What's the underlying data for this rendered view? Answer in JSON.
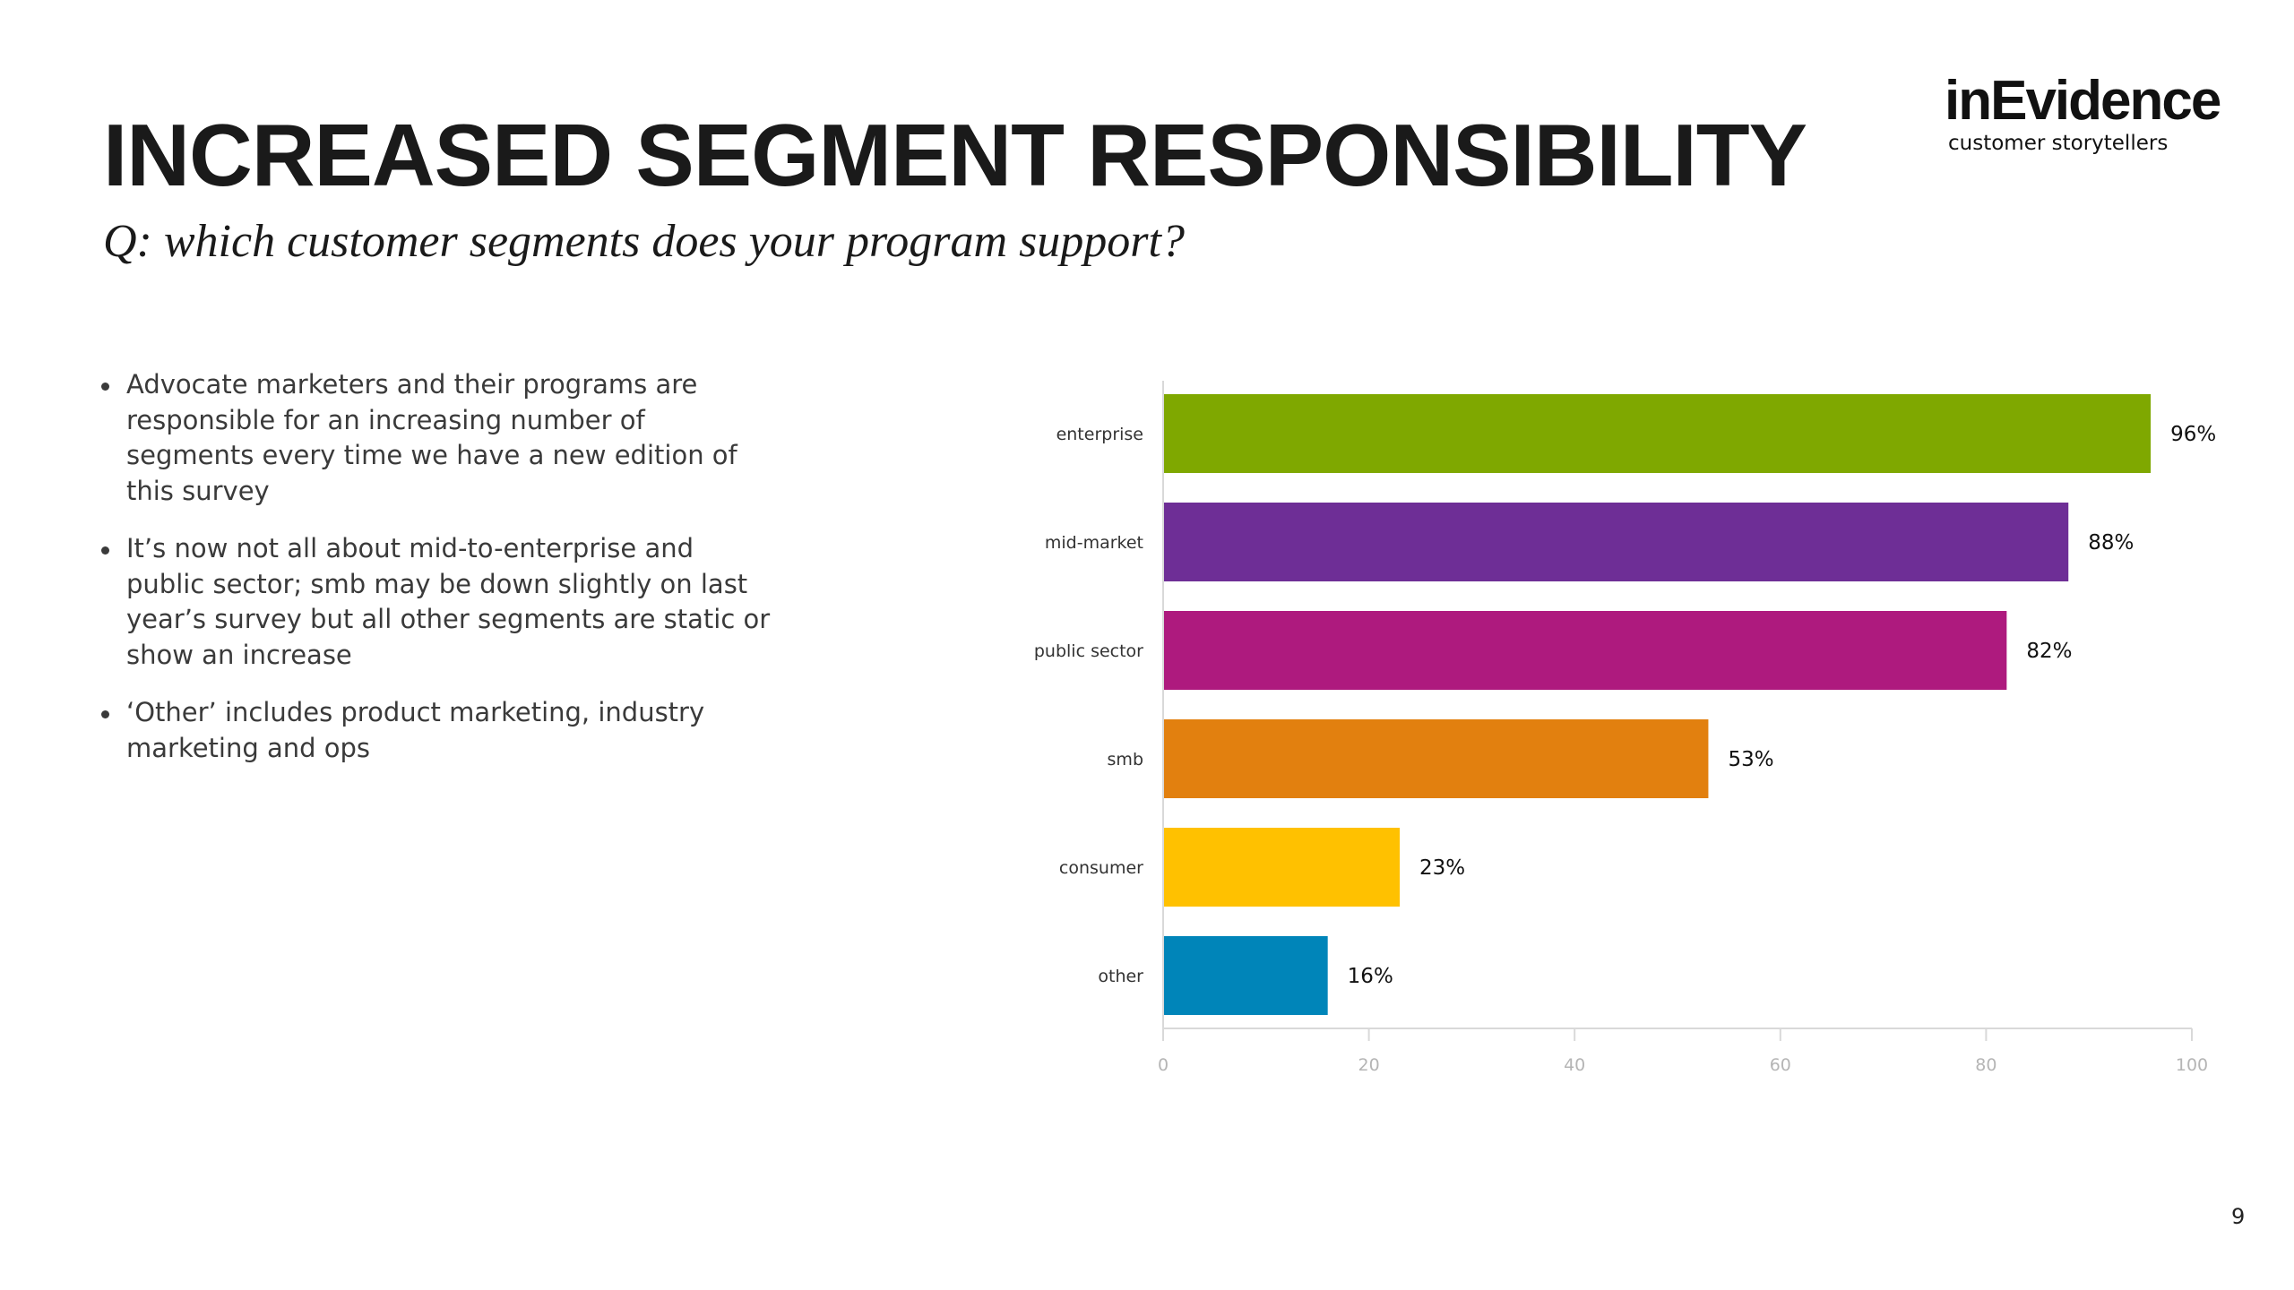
{
  "slide": {
    "title": "INCREASED SEGMENT RESPONSIBILITY",
    "subtitle": "Q: which customer segments does your program support?",
    "page_number": "9"
  },
  "logo": {
    "name": "inEvidence",
    "tagline": "customer storytellers"
  },
  "bullets": [
    "Advocate marketers and their programs are responsible for an increasing number of segments every time we have a new edition of this survey",
    "It’s now not all about mid-to-enterprise and public sector; smb may be down slightly on last year’s survey but all other segments are static or show an increase",
    "‘Other’ includes product marketing, industry marketing and ops"
  ],
  "chart_data": {
    "type": "bar",
    "orientation": "horizontal",
    "title": "",
    "xlabel": "",
    "ylabel": "",
    "categories": [
      "enterprise",
      "mid-market",
      "public sector",
      "smb",
      "consumer",
      "other"
    ],
    "values": [
      96,
      88,
      82,
      53,
      23,
      16
    ],
    "value_labels": [
      "96%",
      "88%",
      "82%",
      "53%",
      "23%",
      "16%"
    ],
    "colors": [
      "#7FA800",
      "#6E2E96",
      "#AE1A7E",
      "#E2800F",
      "#FFC100",
      "#0085B9"
    ],
    "xlim": [
      0,
      100
    ],
    "ticks": [
      0,
      20,
      40,
      60,
      80,
      100
    ],
    "tick_labels": [
      "0",
      "20",
      "40",
      "60",
      "80",
      "100"
    ],
    "grid": false,
    "legend": "none"
  }
}
